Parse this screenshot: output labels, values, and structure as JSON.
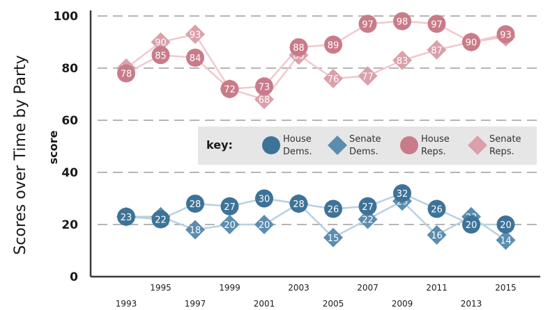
{
  "chart_data": {
    "type": "line",
    "title": "Scores over Time by Party",
    "ylabel": "score",
    "xlabel": "",
    "ylim": [
      0,
      100
    ],
    "yticks": [
      0,
      20,
      40,
      60,
      80,
      100
    ],
    "x": [
      1993,
      1995,
      1997,
      1999,
      2001,
      2003,
      2005,
      2007,
      2009,
      2011,
      2013,
      2015
    ],
    "grid": "horizontal-dashed",
    "legend": {
      "title": "key:",
      "placement": "center-right",
      "entries": [
        {
          "series": 0,
          "line1": "House",
          "line2": "Dems."
        },
        {
          "series": 1,
          "line1": "Senate",
          "line2": "Dems."
        },
        {
          "series": 2,
          "line1": "House",
          "line2": "Reps."
        },
        {
          "series": 3,
          "line1": "Senate",
          "line2": "Reps."
        }
      ]
    },
    "series": [
      {
        "party": "House Dems.",
        "marker": "circle",
        "color": "#3e7398",
        "line_color": "#b9d0df",
        "values": [
          23,
          22,
          28,
          27,
          30,
          28,
          26,
          27,
          32,
          26,
          20,
          20
        ]
      },
      {
        "party": "Senate Dems.",
        "marker": "diamond",
        "color": "#5a8db0",
        "line_color": "#b9d0df",
        "values": [
          23,
          23,
          18,
          20,
          20,
          28,
          15,
          22,
          29,
          16,
          23,
          14
        ]
      },
      {
        "party": "House Reps.",
        "marker": "circle",
        "color": "#c97b89",
        "line_color": "#f0c8cf",
        "values": [
          78,
          85,
          84,
          72,
          73,
          88,
          89,
          97,
          98,
          97,
          90,
          93
        ]
      },
      {
        "party": "Senate Reps.",
        "marker": "diamond",
        "color": "#dba0aa",
        "line_color": "#f0c8cf",
        "values": [
          80,
          90,
          93,
          72,
          68,
          85,
          76,
          77,
          83,
          87,
          90,
          92
        ]
      }
    ]
  },
  "colors": {
    "axis": "#3a3a3a",
    "grid": "#b5b5b5",
    "key_background": "#e6e6e6"
  }
}
